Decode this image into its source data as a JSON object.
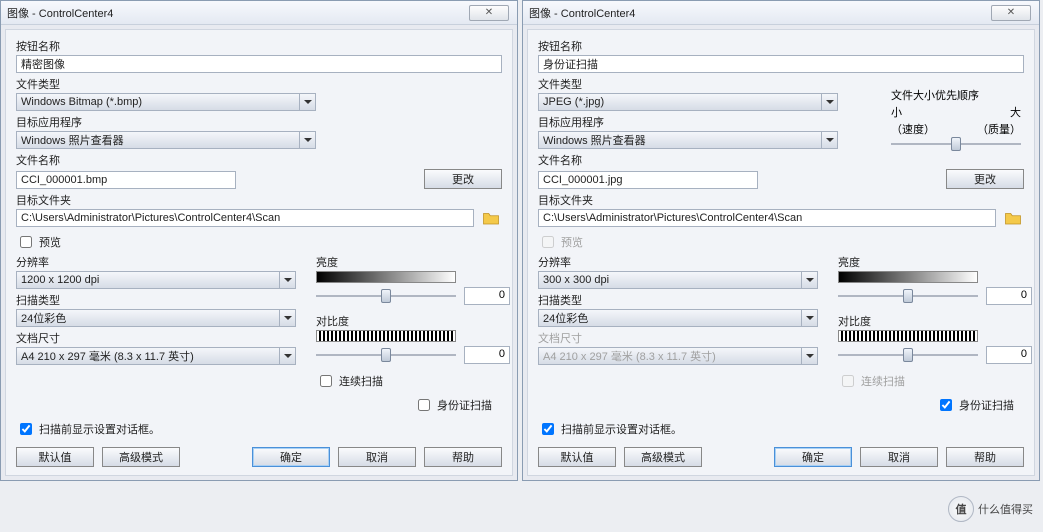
{
  "panels": [
    {
      "title": "图像 - ControlCenter4",
      "button_name_label": "按钮名称",
      "button_name_value": "精密图像",
      "file_type_label": "文件类型",
      "file_type_value": "Windows Bitmap (*.bmp)",
      "target_app_label": "目标应用程序",
      "target_app_value": "Windows 照片查看器",
      "file_name_label": "文件名称",
      "file_name_value": "CCI_000001.bmp",
      "change_btn": "更改",
      "dest_folder_label": "目标文件夹",
      "dest_folder_value": "C:\\Users\\Administrator\\Pictures\\ControlCenter4\\Scan",
      "preview_label": "预览",
      "preview_checked": false,
      "resolution_label": "分辨率",
      "resolution_value": "1200 x 1200 dpi",
      "scan_type_label": "扫描类型",
      "scan_type_value": "24位彩色",
      "doc_size_label": "文档尺寸",
      "doc_size_value": "A4 210 x 297 毫米 (8.3 x 11.7 英寸)",
      "doc_size_disabled": false,
      "brightness_label": "亮度",
      "brightness_value": "0",
      "contrast_label": "对比度",
      "contrast_value": "0",
      "continuous_label": "连续扫描",
      "continuous_checked": false,
      "idcard_label": "身份证扫描",
      "idcard_checked": false,
      "show_dialog_label": "扫描前显示设置对话框。",
      "show_dialog_checked": true,
      "has_filesize_slider": false,
      "btn_default": "默认值",
      "btn_adv": "高级模式",
      "btn_ok": "确定",
      "btn_cancel": "取消",
      "btn_help": "帮助"
    },
    {
      "title": "图像 - ControlCenter4",
      "button_name_label": "按钮名称",
      "button_name_value": "身份证扫描",
      "file_type_label": "文件类型",
      "file_type_value": "JPEG (*.jpg)",
      "target_app_label": "目标应用程序",
      "target_app_value": "Windows 照片查看器",
      "file_name_label": "文件名称",
      "file_name_value": "CCI_000001.jpg",
      "change_btn": "更改",
      "dest_folder_label": "目标文件夹",
      "dest_folder_value": "C:\\Users\\Administrator\\Pictures\\ControlCenter4\\Scan",
      "preview_label": "预览",
      "preview_checked": false,
      "preview_disabled": true,
      "resolution_label": "分辨率",
      "resolution_value": "300 x 300 dpi",
      "scan_type_label": "扫描类型",
      "scan_type_value": "24位彩色",
      "doc_size_label": "文档尺寸",
      "doc_size_value": "A4 210 x 297 毫米 (8.3 x 11.7 英寸)",
      "doc_size_disabled": true,
      "brightness_label": "亮度",
      "brightness_value": "0",
      "contrast_label": "对比度",
      "contrast_value": "0",
      "continuous_label": "连续扫描",
      "continuous_checked": false,
      "continuous_disabled": true,
      "idcard_label": "身份证扫描",
      "idcard_checked": true,
      "show_dialog_label": "扫描前显示设置对话框。",
      "show_dialog_checked": true,
      "has_filesize_slider": true,
      "filesize_title": "文件大小优先顺序",
      "filesize_left_top": "小",
      "filesize_right_top": "大",
      "filesize_left": "（速度）",
      "filesize_right": "（质量）",
      "btn_default": "默认值",
      "btn_adv": "高级模式",
      "btn_ok": "确定",
      "btn_cancel": "取消",
      "btn_help": "帮助"
    }
  ],
  "watermark_text": "什么值得买",
  "colors": {
    "window_bg": "#e8eaf0",
    "client_bg": "#f2f4f8"
  }
}
